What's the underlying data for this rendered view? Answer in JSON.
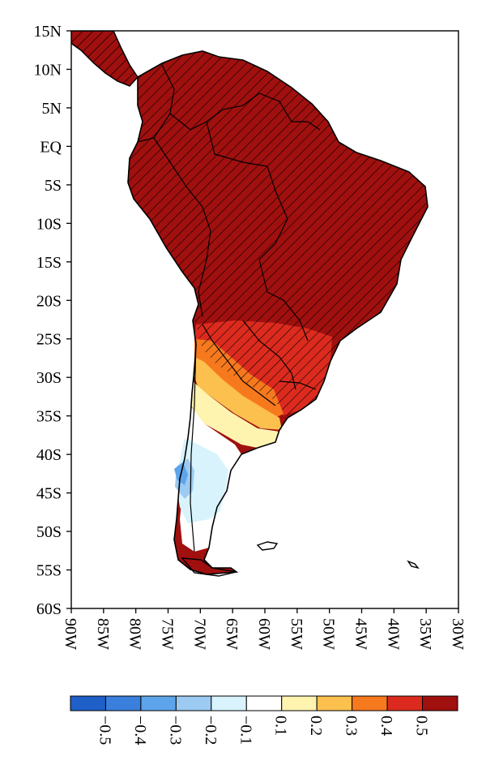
{
  "map": {
    "lat_ticks": [
      "15N",
      "10N",
      "5N",
      "EQ",
      "5S",
      "10S",
      "15S",
      "20S",
      "25S",
      "30S",
      "35S",
      "40S",
      "45S",
      "50S",
      "55S",
      "60S"
    ],
    "lon_ticks": [
      "90W",
      "85W",
      "80W",
      "75W",
      "70W",
      "65W",
      "60W",
      "55W",
      "50W",
      "45W",
      "40W",
      "35W",
      "30W"
    ],
    "lat_range": [
      15,
      -60
    ],
    "lon_range": [
      -90,
      -30
    ],
    "hatching": "diagonal lines over significant region"
  },
  "colorbar": {
    "colors": [
      "#1f5fc8",
      "#3a7fdc",
      "#5ea4ea",
      "#9ccaf2",
      "#d8f3fb",
      "#ffffff",
      "#fff3b0",
      "#fbc04e",
      "#f7791e",
      "#dc2b1e",
      "#a0100f"
    ],
    "labels": [
      "−0.5",
      "−0.4",
      "−0.3",
      "−0.2",
      "−0.1",
      "0.1",
      "0.2",
      "0.3",
      "0.4",
      "0.5"
    ]
  },
  "style": {
    "land_max": "#a0100f",
    "outline": "#000000"
  }
}
